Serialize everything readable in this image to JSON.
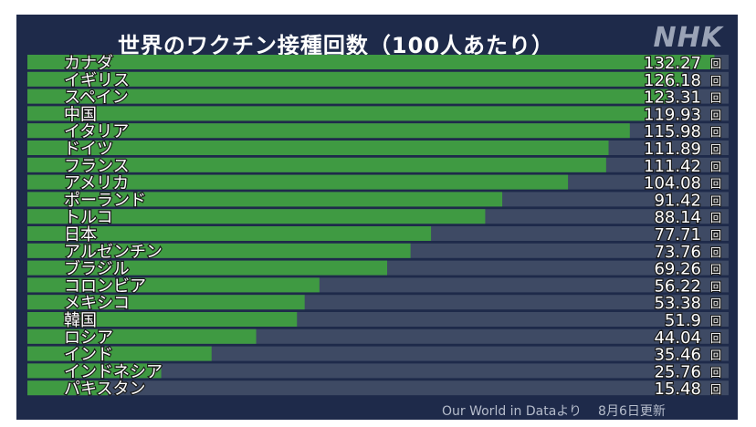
{
  "title": "世界のワクチン接種回数（100人あたり）",
  "logo": "NHK",
  "source": "Our World in Dataより",
  "updated": "8月6日更新",
  "colors": {
    "background": "#1e2a4a",
    "track": "#3e4a64",
    "bar": "#3f9a42"
  },
  "chart_data": {
    "type": "bar",
    "orientation": "horizontal",
    "unit": "回",
    "xlim": [
      0,
      135
    ],
    "categories": [
      "カナダ",
      "イギリス",
      "スペイン",
      "中国",
      "イタリア",
      "ドイツ",
      "フランス",
      "アメリカ",
      "ポーランド",
      "トルコ",
      "日本",
      "アルゼンチン",
      "ブラジル",
      "コロンビア",
      "メキシコ",
      "韓国",
      "ロシア",
      "インド",
      "インドネシア",
      "パキスタン"
    ],
    "value_labels": [
      "132.27",
      "126.18",
      "123.31",
      "119.93",
      "115.98",
      "111.89",
      "111.42",
      "104.08",
      "91.42",
      "88.14",
      "77.71",
      "73.76",
      "69.26",
      "56.22",
      "53.38",
      "51.9",
      "44.04",
      "35.46",
      "25.76",
      "15.48"
    ],
    "values": [
      132.27,
      126.18,
      123.31,
      119.93,
      115.98,
      111.89,
      111.42,
      104.08,
      91.42,
      88.14,
      77.71,
      73.76,
      69.26,
      56.22,
      53.38,
      51.9,
      44.04,
      35.46,
      25.76,
      15.48
    ]
  }
}
